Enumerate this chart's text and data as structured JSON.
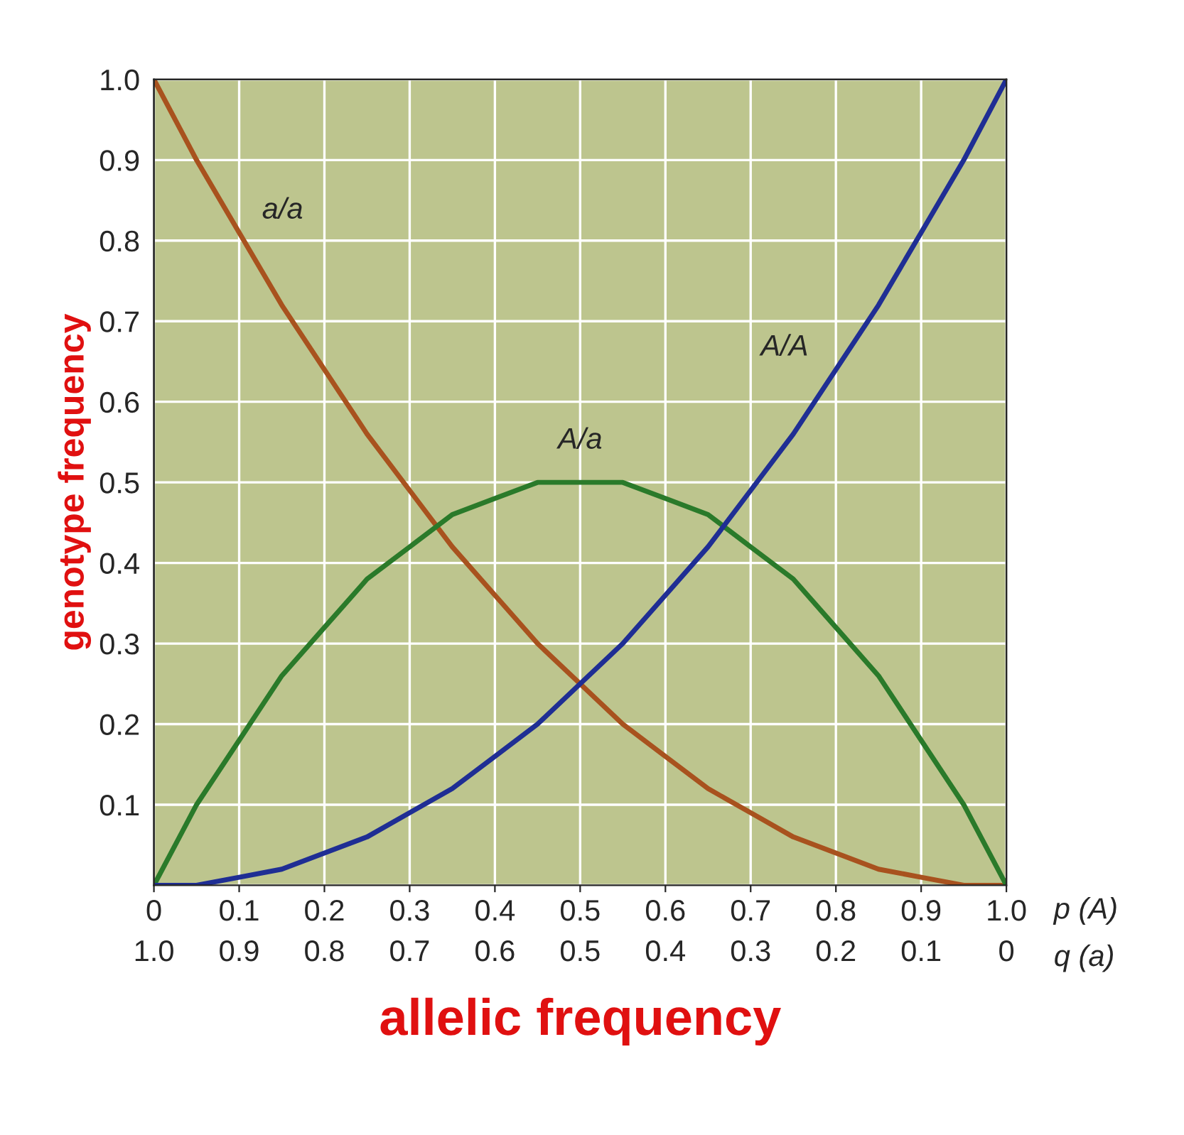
{
  "chart_data": {
    "type": "line",
    "xlabel": "allelic frequency",
    "ylabel": "genotype frequency",
    "x": [
      0,
      0.05,
      0.1,
      0.15,
      0.2,
      0.25,
      0.3,
      0.35,
      0.4,
      0.45,
      0.5,
      0.55,
      0.6,
      0.65,
      0.7,
      0.75,
      0.8,
      0.85,
      0.9,
      0.95,
      1.0
    ],
    "series": [
      {
        "name": "a/a",
        "color": "#a8521e",
        "values": [
          1.0,
          0.9,
          0.81,
          0.72,
          0.64,
          0.56,
          0.49,
          0.42,
          0.36,
          0.3,
          0.25,
          0.2,
          0.16,
          0.12,
          0.09,
          0.06,
          0.04,
          0.02,
          0.01,
          0.0,
          0.0
        ]
      },
      {
        "name": "A/a",
        "color": "#2a7a2a",
        "values": [
          0.0,
          0.1,
          0.18,
          0.26,
          0.32,
          0.38,
          0.42,
          0.46,
          0.48,
          0.5,
          0.5,
          0.5,
          0.48,
          0.46,
          0.42,
          0.38,
          0.32,
          0.26,
          0.18,
          0.1,
          0.0
        ]
      },
      {
        "name": "A/A",
        "color": "#1f2e94",
        "values": [
          0.0,
          0.0,
          0.01,
          0.02,
          0.04,
          0.06,
          0.09,
          0.12,
          0.16,
          0.2,
          0.25,
          0.3,
          0.36,
          0.42,
          0.49,
          0.56,
          0.64,
          0.72,
          0.81,
          0.9,
          1.0
        ]
      }
    ],
    "xlim": [
      0,
      1.0
    ],
    "ylim": [
      0,
      1.0
    ],
    "xticks": [
      0,
      0.1,
      0.2,
      0.3,
      0.4,
      0.5,
      0.6,
      0.7,
      0.8,
      0.9,
      {
        "value": 1.0,
        "label": "1.0"
      }
    ],
    "x2lim": [
      1.0,
      0
    ],
    "x2ticks": [
      {
        "value": 1.0,
        "label": "1.0"
      },
      0.9,
      0.8,
      0.7,
      0.6,
      0.5,
      0.4,
      0.3,
      0.2,
      0.1,
      0
    ],
    "yticks": [
      {
        "value": 0,
        "label": null
      },
      0.1,
      0.2,
      0.3,
      0.4,
      0.5,
      0.6,
      0.7,
      0.8,
      0.9,
      {
        "value": 1.0,
        "label": "1.0"
      }
    ],
    "annotations": [
      "p (A)",
      "q (a)"
    ],
    "grid": true,
    "legend": false,
    "marker": "none",
    "line_style": "solid"
  }
}
